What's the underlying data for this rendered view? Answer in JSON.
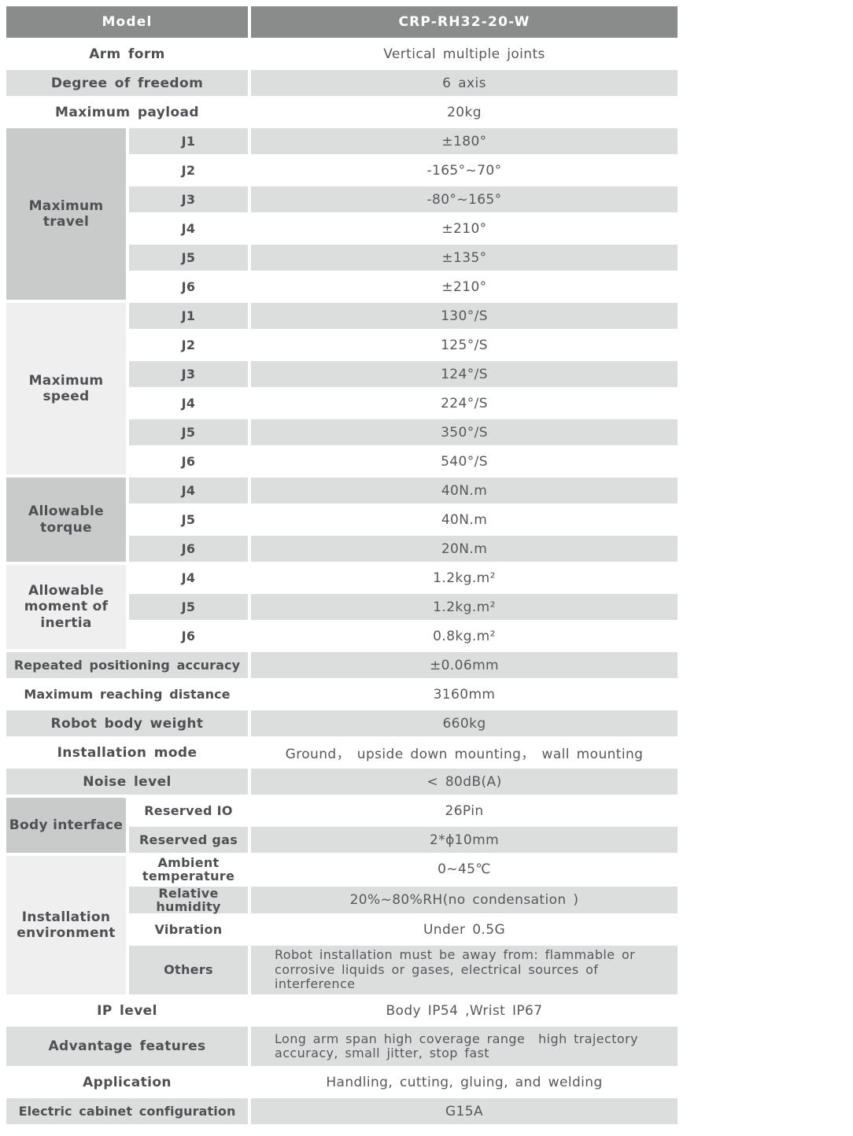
{
  "colors": {
    "header_bg": "#8a8b8b",
    "header_text": "#ffffff",
    "row_gray": "#dcdddd",
    "row_white": "#ffffff",
    "group_medium": "#c9caca",
    "group_light": "#efefef",
    "label_text": "#4f5054",
    "value_text": "#57585c"
  },
  "table": {
    "header": {
      "label": "Model",
      "value": "CRP-RH32-20-W"
    },
    "sections": [
      {
        "type": "simple",
        "label": "Arm form",
        "value": "Vertical multiple joints"
      },
      {
        "type": "simple",
        "label": "Degree of freedom",
        "value": "6 axis"
      },
      {
        "type": "simple",
        "label": "Maximum payload",
        "value": "20kg"
      },
      {
        "type": "group",
        "label": "Maximum travel",
        "rows": [
          {
            "sub": "J1",
            "value": "±180°"
          },
          {
            "sub": "J2",
            "value": "-165°~70°"
          },
          {
            "sub": "J3",
            "value": "-80°~165°"
          },
          {
            "sub": "J4",
            "value": "±210°"
          },
          {
            "sub": "J5",
            "value": "±135°"
          },
          {
            "sub": "J6",
            "value": "±210°"
          }
        ]
      },
      {
        "type": "group",
        "label": "Maximum speed",
        "rows": [
          {
            "sub": "J1",
            "value": "130°/S"
          },
          {
            "sub": "J2",
            "value": "125°/S"
          },
          {
            "sub": "J3",
            "value": "124°/S"
          },
          {
            "sub": "J4",
            "value": "224°/S"
          },
          {
            "sub": "J5",
            "value": "350°/S"
          },
          {
            "sub": "J6",
            "value": "540°/S"
          }
        ]
      },
      {
        "type": "group",
        "label": "Allowable torque",
        "rows": [
          {
            "sub": "J4",
            "value": "40N.m"
          },
          {
            "sub": "J5",
            "value": "40N.m"
          },
          {
            "sub": "J6",
            "value": "20N.m"
          }
        ]
      },
      {
        "type": "group",
        "label": "Allowable moment of inertia",
        "rows": [
          {
            "sub": "J4",
            "value": "1.2kg.m²"
          },
          {
            "sub": "J5",
            "value": "1.2kg.m²"
          },
          {
            "sub": "J6",
            "value": "0.8kg.m²"
          }
        ]
      },
      {
        "type": "simple",
        "label": "Repeated positioning accuracy",
        "value": "±0.06mm"
      },
      {
        "type": "simple",
        "label": "Maximum reaching distance",
        "value": "3160mm"
      },
      {
        "type": "simple",
        "label": "Robot body weight",
        "value": "660kg"
      },
      {
        "type": "simple",
        "label": "Installation mode",
        "value": "Ground， upside down mounting， wall mounting"
      },
      {
        "type": "simple",
        "label": "Noise level",
        "value": "< 80dB(A)"
      },
      {
        "type": "group",
        "label": "Body interface",
        "rows": [
          {
            "sub": "Reserved IO",
            "value": "26Pin"
          },
          {
            "sub": "Reserved gas",
            "value": "2*ϕ10mm"
          }
        ]
      },
      {
        "type": "group",
        "label": "Installation environment",
        "rows": [
          {
            "sub": "Ambient temperature",
            "value": "0~45℃"
          },
          {
            "sub": "Relative humidity",
            "value": "20%~80%RH(no condensation )"
          },
          {
            "sub": "Vibration",
            "value": "Under 0.5G"
          },
          {
            "sub": "Others",
            "value": "Robot installation must be away from: flammable or corrosive liquids or gases, electrical sources of interference"
          }
        ]
      },
      {
        "type": "simple",
        "label": "IP level",
        "value": "Body IP54 ,Wrist IP67"
      },
      {
        "type": "simple",
        "label": "Advantage features",
        "value": "Long arm span high coverage range  high trajectory accuracy, small jitter, stop fast"
      },
      {
        "type": "simple",
        "label": "Application",
        "value": "Handling, cutting, gluing, and welding"
      },
      {
        "type": "simple",
        "label": "Electric cabinet configuration",
        "value": "G15A"
      }
    ]
  }
}
